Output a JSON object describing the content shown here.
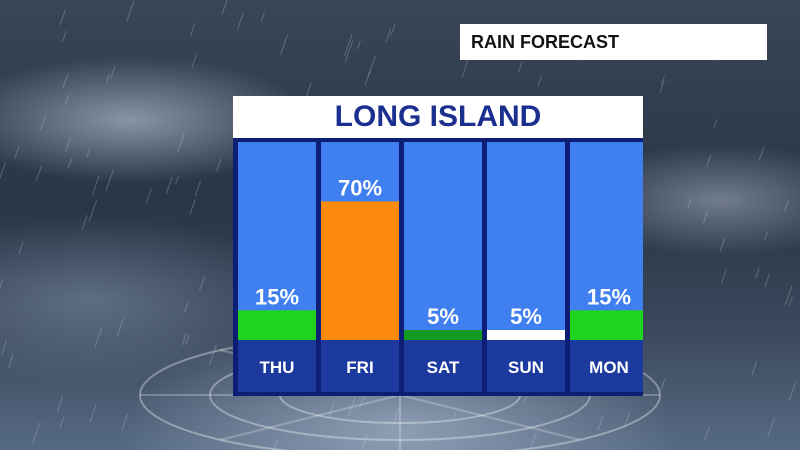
{
  "header": {
    "title": "RAIN FORECAST"
  },
  "colors": {
    "column_bg": "#3f7ff0",
    "label_band": "#1c3a9e",
    "panel_frame": "#0c1f74",
    "bar_green": "#1fd31f",
    "bar_dark_green": "#129a22",
    "bar_orange": "#fb8a0e",
    "bar_white": "#ffffff"
  },
  "chart_data": {
    "type": "bar",
    "title": "LONG ISLAND",
    "categories": [
      "THU",
      "FRI",
      "SAT",
      "SUN",
      "MON"
    ],
    "values": [
      15,
      70,
      5,
      5,
      15
    ],
    "data_labels": [
      "15%",
      "70%",
      "5%",
      "5%",
      "15%"
    ],
    "bar_colors": [
      "#1fd31f",
      "#fb8a0e",
      "#129a22",
      "#ffffff",
      "#1fd31f"
    ],
    "ylim": [
      0,
      100
    ]
  }
}
